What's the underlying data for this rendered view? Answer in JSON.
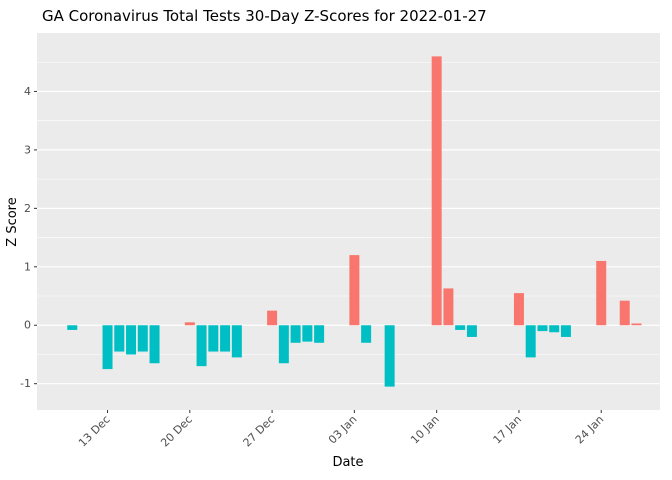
{
  "chart_data": {
    "type": "bar",
    "title": "GA Coronavirus Total Tests 30-Day Z-Scores for 2022-01-27",
    "xlabel": "Date",
    "ylabel": "Z Score",
    "ylim": [
      -1.45,
      5.0
    ],
    "x_range": [
      "2021-12-07",
      "2022-01-29"
    ],
    "y_major_ticks": [
      -1,
      0,
      1,
      2,
      3,
      4
    ],
    "x_ticks": [
      {
        "date": "2021-12-13",
        "label": "13 Dec"
      },
      {
        "date": "2021-12-20",
        "label": "20 Dec"
      },
      {
        "date": "2021-12-27",
        "label": "27 Dec"
      },
      {
        "date": "2022-01-03",
        "label": "03 Jan"
      },
      {
        "date": "2022-01-10",
        "label": "10 Jan"
      },
      {
        "date": "2022-01-17",
        "label": "17 Jan"
      },
      {
        "date": "2022-01-24",
        "label": "24 Jan"
      }
    ],
    "points": [
      {
        "date": "2021-12-10",
        "z": -0.08
      },
      {
        "date": "2021-12-13",
        "z": -0.75
      },
      {
        "date": "2021-12-14",
        "z": -0.45
      },
      {
        "date": "2021-12-15",
        "z": -0.5
      },
      {
        "date": "2021-12-16",
        "z": -0.45
      },
      {
        "date": "2021-12-17",
        "z": -0.65
      },
      {
        "date": "2021-12-20",
        "z": 0.05
      },
      {
        "date": "2021-12-21",
        "z": -0.7
      },
      {
        "date": "2021-12-22",
        "z": -0.45
      },
      {
        "date": "2021-12-23",
        "z": -0.45
      },
      {
        "date": "2021-12-24",
        "z": -0.55
      },
      {
        "date": "2021-12-27",
        "z": 0.25
      },
      {
        "date": "2021-12-28",
        "z": -0.65
      },
      {
        "date": "2021-12-29",
        "z": -0.3
      },
      {
        "date": "2021-12-30",
        "z": -0.28
      },
      {
        "date": "2021-12-31",
        "z": -0.3
      },
      {
        "date": "2022-01-03",
        "z": 1.2
      },
      {
        "date": "2022-01-04",
        "z": -0.3
      },
      {
        "date": "2022-01-06",
        "z": -1.05
      },
      {
        "date": "2022-01-10",
        "z": 4.6
      },
      {
        "date": "2022-01-11",
        "z": 0.63
      },
      {
        "date": "2022-01-12",
        "z": -0.08
      },
      {
        "date": "2022-01-13",
        "z": -0.2
      },
      {
        "date": "2022-01-17",
        "z": 0.55
      },
      {
        "date": "2022-01-18",
        "z": -0.55
      },
      {
        "date": "2022-01-19",
        "z": -0.1
      },
      {
        "date": "2022-01-20",
        "z": -0.12
      },
      {
        "date": "2022-01-21",
        "z": -0.2
      },
      {
        "date": "2022-01-24",
        "z": 1.1
      },
      {
        "date": "2022-01-26",
        "z": 0.42
      },
      {
        "date": "2022-01-27",
        "z": 0.03
      }
    ],
    "colors": {
      "positive": "#F8766D",
      "negative": "#00BFC4",
      "panel_background": "#EBEBEB",
      "grid": "#FFFFFF",
      "tick_text": "#4d4d4d"
    },
    "legend": "none",
    "grid": "on"
  }
}
